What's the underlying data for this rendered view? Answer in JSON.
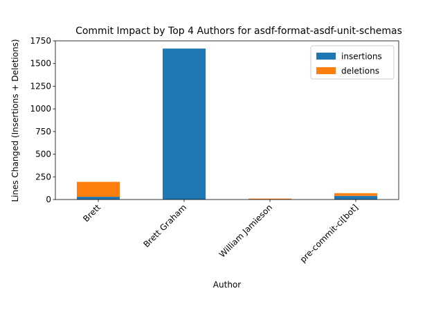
{
  "chart_data": {
    "type": "bar",
    "stacked": true,
    "title": "Commit Impact by Top 4 Authors for asdf-format-asdf-unit-schemas",
    "xlabel": "Author",
    "ylabel": "Lines Changed (Insertions + Deletions)",
    "categories": [
      "Brett",
      "Brett Graham",
      "William Jamieson",
      "pre-commit-ci[bot]"
    ],
    "series": [
      {
        "name": "insertions",
        "color": "#1f77b4",
        "values": [
          30,
          1665,
          2,
          40
        ]
      },
      {
        "name": "deletions",
        "color": "#ff7f0e",
        "values": [
          165,
          0,
          8,
          30
        ]
      }
    ],
    "ylim": [
      0,
      1750
    ],
    "yticks": [
      0,
      250,
      500,
      750,
      1000,
      1250,
      1500,
      1750
    ],
    "grid": false,
    "legend_position": "top-right"
  }
}
